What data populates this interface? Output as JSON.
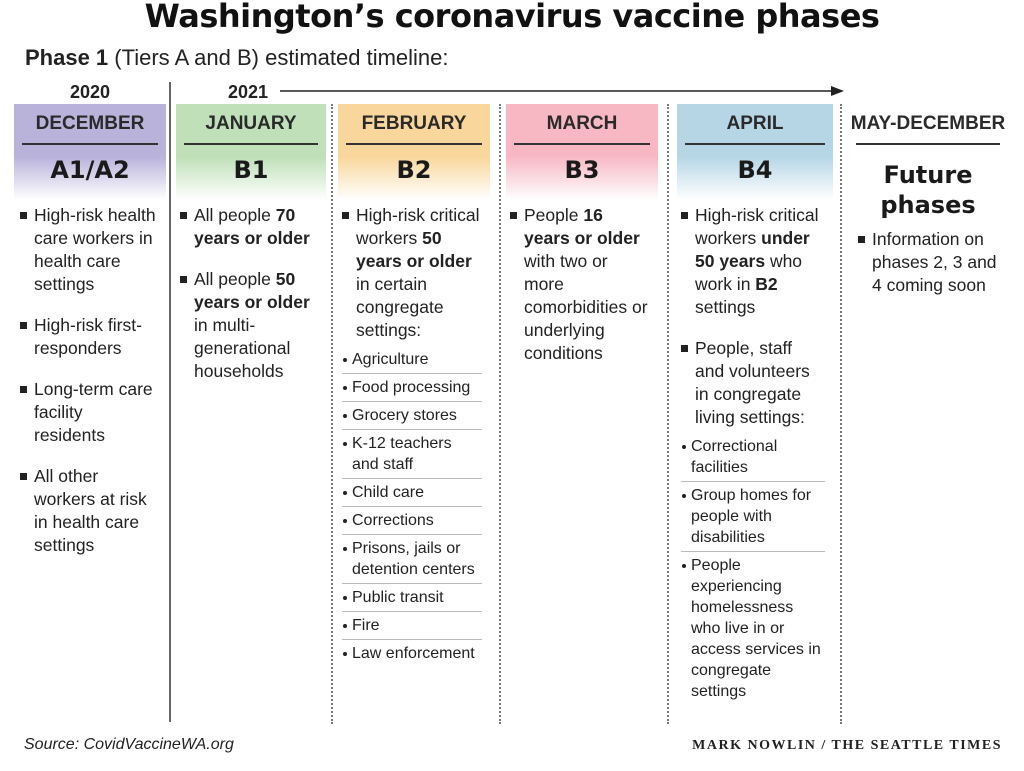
{
  "title": "Washington’s coronavirus vaccine phases",
  "subtitle": {
    "bold": "Phase 1",
    "rest": " (Tiers A and B) estimated timeline:"
  },
  "years": {
    "y2020": "2020",
    "y2021": "2021"
  },
  "columns": [
    {
      "month": "DECEMBER",
      "tier": "A1/A2",
      "color": "#b9b3dc",
      "items": [
        "High-risk health care workers in health care settings",
        "High-risk first-responders",
        "Long-term care facility residents",
        "All other workers at risk in health care settings"
      ]
    },
    {
      "month": "JANUARY",
      "tier": "B1",
      "color": "#bfe0b8",
      "items": [
        {
          "before": "All people ",
          "bold": "70 years or older",
          "after": ""
        },
        {
          "before": "All people ",
          "bold": "50 years or older",
          "after": " in multi-generational households"
        }
      ]
    },
    {
      "month": "FEBRUARY",
      "tier": "B2",
      "color": "#f9d79c",
      "item": {
        "before": "High-risk critical workers ",
        "bold": "50 years or older",
        "after": " in certain congregate settings:"
      },
      "subitems": [
        "Agriculture",
        "Food processing",
        "Grocery stores",
        "K-12 teachers and staff",
        "Child care",
        "Corrections",
        "Prisons, jails or detention centers",
        "Public transit",
        "Fire",
        "Law enforcement"
      ]
    },
    {
      "month": "MARCH",
      "tier": "B3",
      "color": "#f7b8c4",
      "item": {
        "before": "People ",
        "bold": "16 years or older",
        "after": " with two or more comorbidities or underlying conditions"
      }
    },
    {
      "month": "APRIL",
      "tier": "B4",
      "color": "#b6d6e6",
      "item1": {
        "before": "High-risk critical workers ",
        "bold": "under 50 years",
        "middle": " who work in ",
        "bold2": "B2",
        "after": " settings"
      },
      "item2": "People, staff and volunteers in congregate living settings:",
      "subitems": [
        "Correctional facilities",
        "Group homes for people with disabilities",
        "People experiencing homelessness who live in or access services in congregate settings"
      ]
    },
    {
      "month": "MAY-DECEMBER",
      "tier_line1": "Future",
      "tier_line2": "phases",
      "item": "Information on phases 2, 3 and 4 coming soon"
    }
  ],
  "source": "Source: CovidVaccineWA.org",
  "credit": "MARK NOWLIN / THE SEATTLE TIMES"
}
